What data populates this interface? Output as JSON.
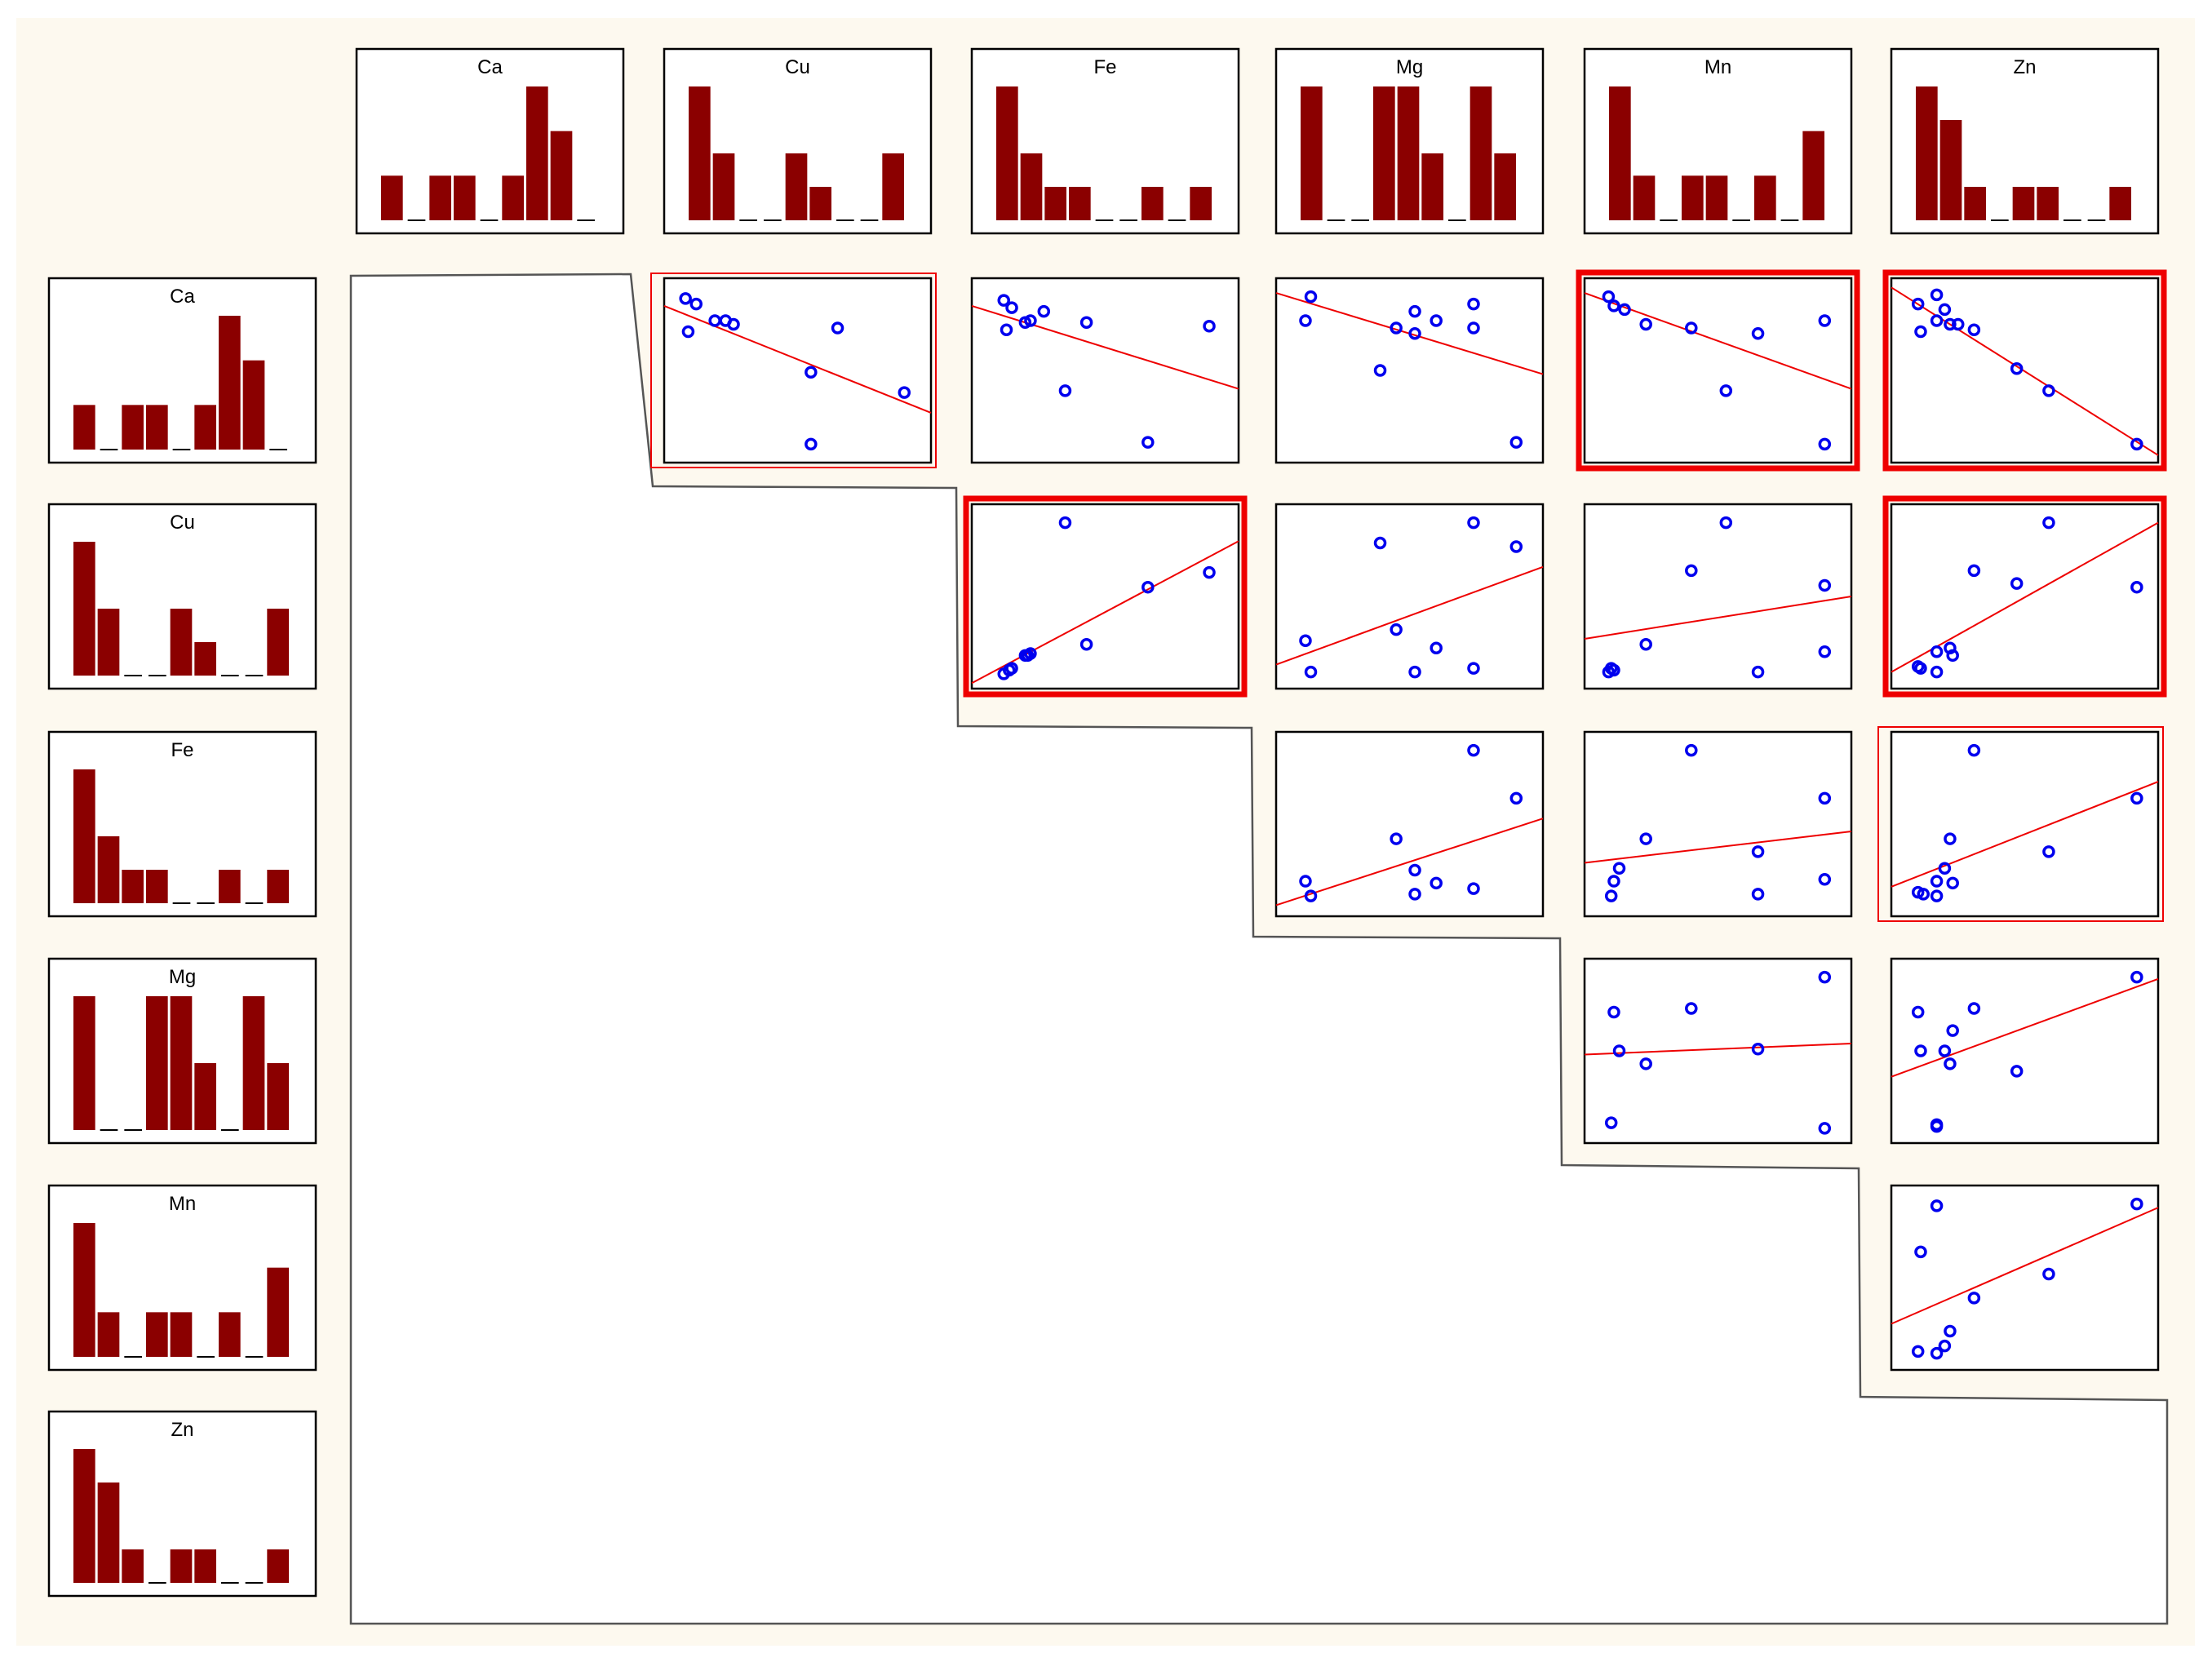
{
  "colors": {
    "background": "#fdf9ef",
    "panel_fill": "#ffffff",
    "panel_border": "#000000",
    "bar": "#8b0000",
    "point": "#0000ee",
    "fit_line": "#ee0000",
    "highlight": "#ee0000",
    "outline": "#555555"
  },
  "chart_data": {
    "type": "scatter",
    "title": "",
    "variables": [
      "Ca",
      "Cu",
      "Fe",
      "Mg",
      "Mn",
      "Zn"
    ],
    "histograms": {
      "bins": 9,
      "counts": {
        "Ca": [
          1,
          0,
          1,
          1,
          0,
          1,
          3,
          2,
          0
        ],
        "Cu": [
          4,
          2,
          0,
          0,
          2,
          1,
          0,
          0,
          2
        ],
        "Fe": [
          4,
          2,
          1,
          1,
          0,
          0,
          1,
          0,
          1
        ],
        "Mg": [
          2,
          0,
          0,
          2,
          2,
          1,
          0,
          2,
          1
        ],
        "Mn": [
          3,
          1,
          0,
          1,
          1,
          0,
          1,
          0,
          2
        ],
        "Zn": [
          4,
          3,
          1,
          0,
          1,
          1,
          0,
          0,
          1
        ]
      }
    },
    "scatter_pairs": [
      {
        "x_var": "Cu",
        "y_var": "Ca",
        "highlight": "thin",
        "points": [
          [
            0.08,
            0.89
          ],
          [
            0.12,
            0.86
          ],
          [
            0.09,
            0.71
          ],
          [
            0.19,
            0.77
          ],
          [
            0.23,
            0.77
          ],
          [
            0.26,
            0.75
          ],
          [
            0.65,
            0.73
          ],
          [
            0.55,
            0.49
          ],
          [
            0.9,
            0.38
          ],
          [
            0.55,
            0.1
          ]
        ],
        "fit": [
          0.85,
          0.27
        ]
      },
      {
        "x_var": "Fe",
        "y_var": "Ca",
        "highlight": "none",
        "points": [
          [
            0.12,
            0.88
          ],
          [
            0.15,
            0.84
          ],
          [
            0.22,
            0.77
          ],
          [
            0.27,
            0.82
          ],
          [
            0.2,
            0.76
          ],
          [
            0.13,
            0.72
          ],
          [
            0.43,
            0.76
          ],
          [
            0.35,
            0.39
          ],
          [
            0.66,
            0.11
          ],
          [
            0.89,
            0.74
          ]
        ],
        "fit": [
          0.85,
          0.4
        ]
      },
      {
        "x_var": "Mg",
        "y_var": "Ca",
        "highlight": "none",
        "points": [
          [
            0.13,
            0.9
          ],
          [
            0.11,
            0.77
          ],
          [
            0.45,
            0.73
          ],
          [
            0.52,
            0.82
          ],
          [
            0.52,
            0.7
          ],
          [
            0.6,
            0.77
          ],
          [
            0.74,
            0.86
          ],
          [
            0.74,
            0.73
          ],
          [
            0.39,
            0.5
          ],
          [
            0.9,
            0.11
          ]
        ],
        "fit": [
          0.92,
          0.48
        ]
      },
      {
        "x_var": "Mn",
        "y_var": "Ca",
        "highlight": "thick",
        "points": [
          [
            0.09,
            0.9
          ],
          [
            0.11,
            0.85
          ],
          [
            0.15,
            0.83
          ],
          [
            0.23,
            0.75
          ],
          [
            0.4,
            0.73
          ],
          [
            0.65,
            0.7
          ],
          [
            0.9,
            0.77
          ],
          [
            0.53,
            0.39
          ],
          [
            0.9,
            0.1
          ]
        ],
        "fit": [
          0.92,
          0.4
        ]
      },
      {
        "x_var": "Zn",
        "y_var": "Ca",
        "highlight": "thick",
        "points": [
          [
            0.1,
            0.86
          ],
          [
            0.17,
            0.91
          ],
          [
            0.2,
            0.83
          ],
          [
            0.17,
            0.77
          ],
          [
            0.22,
            0.75
          ],
          [
            0.25,
            0.75
          ],
          [
            0.11,
            0.71
          ],
          [
            0.31,
            0.72
          ],
          [
            0.47,
            0.51
          ],
          [
            0.59,
            0.39
          ],
          [
            0.92,
            0.1
          ]
        ],
        "fit": [
          0.95,
          0.04
        ]
      },
      {
        "x_var": "Fe",
        "y_var": "Cu",
        "highlight": "thick",
        "points": [
          [
            0.35,
            0.9
          ],
          [
            0.66,
            0.55
          ],
          [
            0.89,
            0.63
          ],
          [
            0.43,
            0.24
          ],
          [
            0.2,
            0.18
          ],
          [
            0.21,
            0.18
          ],
          [
            0.22,
            0.19
          ],
          [
            0.12,
            0.08
          ],
          [
            0.14,
            0.1
          ],
          [
            0.15,
            0.11
          ]
        ],
        "fit": [
          0.03,
          0.8
        ]
      },
      {
        "x_var": "Mg",
        "y_var": "Cu",
        "highlight": "none",
        "points": [
          [
            0.39,
            0.79
          ],
          [
            0.74,
            0.9
          ],
          [
            0.9,
            0.77
          ],
          [
            0.45,
            0.32
          ],
          [
            0.11,
            0.26
          ],
          [
            0.13,
            0.09
          ],
          [
            0.52,
            0.09
          ],
          [
            0.6,
            0.22
          ],
          [
            0.74,
            0.11
          ]
        ],
        "fit": [
          0.13,
          0.66
        ]
      },
      {
        "x_var": "Mn",
        "y_var": "Cu",
        "highlight": "none",
        "points": [
          [
            0.53,
            0.9
          ],
          [
            0.4,
            0.64
          ],
          [
            0.9,
            0.56
          ],
          [
            0.23,
            0.24
          ],
          [
            0.09,
            0.09
          ],
          [
            0.1,
            0.11
          ],
          [
            0.11,
            0.1
          ],
          [
            0.65,
            0.09
          ],
          [
            0.9,
            0.2
          ]
        ],
        "fit": [
          0.27,
          0.5
        ]
      },
      {
        "x_var": "Zn",
        "y_var": "Cu",
        "highlight": "thick",
        "points": [
          [
            0.59,
            0.9
          ],
          [
            0.31,
            0.64
          ],
          [
            0.47,
            0.57
          ],
          [
            0.92,
            0.55
          ],
          [
            0.17,
            0.2
          ],
          [
            0.22,
            0.22
          ],
          [
            0.23,
            0.18
          ],
          [
            0.1,
            0.12
          ],
          [
            0.11,
            0.11
          ],
          [
            0.17,
            0.09
          ]
        ],
        "fit": [
          0.09,
          0.9
        ]
      },
      {
        "x_var": "Mg",
        "y_var": "Fe",
        "highlight": "none",
        "points": [
          [
            0.74,
            0.9
          ],
          [
            0.9,
            0.64
          ],
          [
            0.45,
            0.42
          ],
          [
            0.52,
            0.25
          ],
          [
            0.6,
            0.18
          ],
          [
            0.11,
            0.19
          ],
          [
            0.13,
            0.11
          ],
          [
            0.52,
            0.12
          ],
          [
            0.74,
            0.15
          ]
        ],
        "fit": [
          0.06,
          0.53
        ]
      },
      {
        "x_var": "Mn",
        "y_var": "Fe",
        "highlight": "none",
        "points": [
          [
            0.4,
            0.9
          ],
          [
            0.9,
            0.64
          ],
          [
            0.23,
            0.42
          ],
          [
            0.65,
            0.35
          ],
          [
            0.13,
            0.26
          ],
          [
            0.11,
            0.19
          ],
          [
            0.1,
            0.11
          ],
          [
            0.65,
            0.12
          ],
          [
            0.9,
            0.2
          ]
        ],
        "fit": [
          0.29,
          0.46
        ]
      },
      {
        "x_var": "Zn",
        "y_var": "Fe",
        "highlight": "thin",
        "points": [
          [
            0.31,
            0.9
          ],
          [
            0.92,
            0.64
          ],
          [
            0.22,
            0.42
          ],
          [
            0.59,
            0.35
          ],
          [
            0.2,
            0.26
          ],
          [
            0.17,
            0.19
          ],
          [
            0.23,
            0.18
          ],
          [
            0.1,
            0.13
          ],
          [
            0.12,
            0.12
          ],
          [
            0.17,
            0.11
          ]
        ],
        "fit": [
          0.16,
          0.73
        ]
      },
      {
        "x_var": "Mn",
        "y_var": "Mg",
        "highlight": "none",
        "points": [
          [
            0.9,
            0.9
          ],
          [
            0.4,
            0.73
          ],
          [
            0.11,
            0.71
          ],
          [
            0.13,
            0.5
          ],
          [
            0.23,
            0.43
          ],
          [
            0.65,
            0.51
          ],
          [
            0.1,
            0.11
          ],
          [
            0.9,
            0.08
          ]
        ],
        "fit": [
          0.48,
          0.54
        ]
      },
      {
        "x_var": "Zn",
        "y_var": "Mg",
        "highlight": "none",
        "points": [
          [
            0.92,
            0.9
          ],
          [
            0.31,
            0.73
          ],
          [
            0.1,
            0.71
          ],
          [
            0.23,
            0.61
          ],
          [
            0.2,
            0.5
          ],
          [
            0.11,
            0.5
          ],
          [
            0.22,
            0.43
          ],
          [
            0.47,
            0.39
          ],
          [
            0.17,
            0.1
          ],
          [
            0.17,
            0.09
          ]
        ],
        "fit": [
          0.36,
          0.89
        ]
      },
      {
        "x_var": "Zn",
        "y_var": "Mn",
        "highlight": "none",
        "points": [
          [
            0.92,
            0.9
          ],
          [
            0.17,
            0.89
          ],
          [
            0.11,
            0.64
          ],
          [
            0.31,
            0.39
          ],
          [
            0.59,
            0.52
          ],
          [
            0.22,
            0.21
          ],
          [
            0.2,
            0.13
          ],
          [
            0.1,
            0.1
          ],
          [
            0.17,
            0.09
          ]
        ],
        "fit": [
          0.25,
          0.88
        ]
      }
    ]
  }
}
